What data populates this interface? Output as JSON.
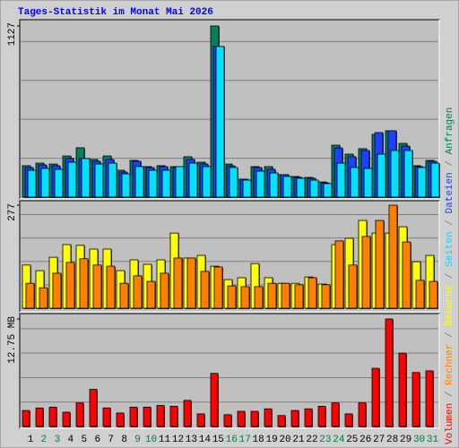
{
  "title": "Tages-Statistik im Monat Mai 2026",
  "categories": [
    "1",
    "2",
    "3",
    "4",
    "5",
    "6",
    "7",
    "8",
    "9",
    "10",
    "11",
    "12",
    "13",
    "14",
    "15",
    "16",
    "17",
    "18",
    "19",
    "20",
    "21",
    "22",
    "23",
    "24",
    "25",
    "26",
    "27",
    "28",
    "29",
    "30",
    "31"
  ],
  "category_color": "#000000",
  "highlight_color": "#008040",
  "highlighted_categories": [
    "2",
    "3",
    "9",
    "10",
    "16",
    "17",
    "23",
    "24",
    "30",
    "31"
  ],
  "chart_data": [
    {
      "type": "bar",
      "ylim": [
        0,
        1127
      ],
      "yticks": [
        1127
      ],
      "series": [
        {
          "name": "Anfragen",
          "color": "#00805c",
          "values": [
            207,
            224,
            218,
            271,
            325,
            248,
            271,
            177,
            242,
            201,
            207,
            201,
            266,
            230,
            1127,
            218,
            118,
            201,
            201,
            148,
            136,
            130,
            100,
            342,
            283,
            319,
            413,
            437,
            354,
            207,
            242
          ]
        },
        {
          "name": "Dateien",
          "color": "#2040ff",
          "values": [
            195,
            212,
            206,
            255,
            254,
            236,
            248,
            165,
            236,
            195,
            201,
            195,
            248,
            218,
            992,
            206,
            118,
            195,
            183,
            148,
            130,
            124,
            94,
            324,
            266,
            307,
            425,
            437,
            336,
            201,
            236
          ]
        },
        {
          "name": "Seiten",
          "color": "#00e0ff",
          "values": [
            177,
            189,
            183,
            230,
            254,
            218,
            224,
            153,
            201,
            177,
            177,
            201,
            224,
            201,
            992,
            195,
            112,
            171,
            159,
            136,
            124,
            112,
            89,
            224,
            195,
            189,
            283,
            307,
            307,
            195,
            224
          ]
        }
      ]
    },
    {
      "type": "bar",
      "ylim": [
        0,
        277
      ],
      "yticks": [
        277
      ],
      "series": [
        {
          "name": "Besuche",
          "color": "#ffff00",
          "values": [
            116,
            101,
            137,
            171,
            169,
            159,
            159,
            101,
            130,
            118,
            130,
            202,
            135,
            142,
            113,
            77,
            82,
            120,
            82,
            67,
            67,
            84,
            65,
            171,
            188,
            236,
            202,
            202,
            219,
            125,
            142
          ]
        },
        {
          "name": "Rechner",
          "color": "#ff8000",
          "values": [
            67,
            55,
            94,
            123,
            133,
            116,
            113,
            67,
            87,
            72,
            94,
            135,
            135,
            99,
            111,
            60,
            58,
            58,
            67,
            67,
            63,
            82,
            63,
            181,
            116,
            193,
            236,
            277,
            178,
            75,
            72
          ]
        }
      ]
    },
    {
      "type": "bar",
      "ylim": [
        0,
        12.75
      ],
      "yticks": [
        {
          "value": 12.75,
          "label": "12.75 MB"
        }
      ],
      "series": [
        {
          "name": "Volumen",
          "color": "#ff0000",
          "values": [
            1.9,
            2.2,
            2.3,
            1.7,
            2.8,
            4.4,
            2.2,
            1.6,
            2.3,
            2.3,
            2.5,
            2.4,
            3.1,
            1.5,
            6.3,
            1.4,
            1.8,
            1.8,
            2.1,
            1.3,
            1.9,
            2.1,
            2.4,
            2.8,
            1.5,
            2.8,
            6.9,
            12.75,
            8.7,
            6.4,
            6.6
          ]
        }
      ]
    }
  ]
}
